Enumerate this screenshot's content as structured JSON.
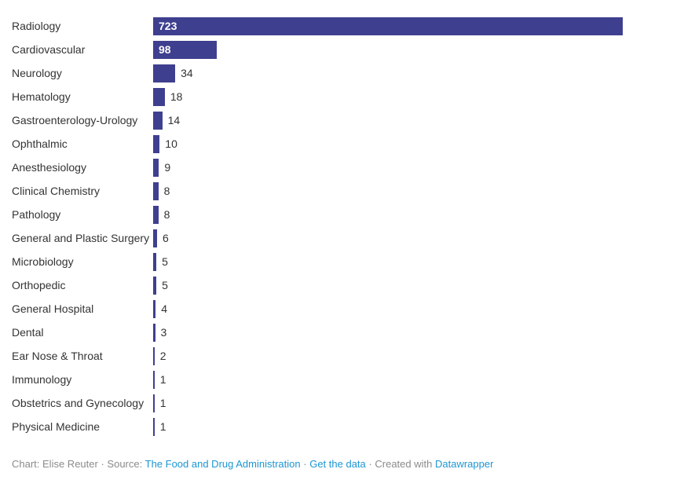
{
  "chart_data": {
    "type": "bar",
    "orientation": "horizontal",
    "categories": [
      "Radiology",
      "Cardiovascular",
      "Neurology",
      "Hematology",
      "Gastroenterology-Urology",
      "Ophthalmic",
      "Anesthesiology",
      "Clinical Chemistry",
      "Pathology",
      "General and Plastic Surgery",
      "Microbiology",
      "Orthopedic",
      "General Hospital",
      "Dental",
      "Ear Nose & Throat",
      "Immunology",
      "Obstetrics and Gynecology",
      "Physical Medicine"
    ],
    "values": [
      723,
      98,
      34,
      18,
      14,
      10,
      9,
      8,
      8,
      6,
      5,
      5,
      4,
      3,
      2,
      1,
      1,
      1
    ],
    "title": "",
    "xlabel": "",
    "ylabel": "",
    "xlim": [
      0,
      800
    ],
    "grid": false,
    "legend": false,
    "value_labels": true,
    "bar_color": "#3F3F8F",
    "inside_label_color": "#ffffff",
    "outside_label_color": "#333333"
  },
  "footer": {
    "chart_credit": "Chart: Elise Reuter",
    "separator": "·",
    "source_label": "Source:",
    "source_link": "The Food and Drug Administration",
    "get_data_link": "Get the data",
    "created_with": "Created with",
    "datawrapper_link": "Datawrapper"
  }
}
